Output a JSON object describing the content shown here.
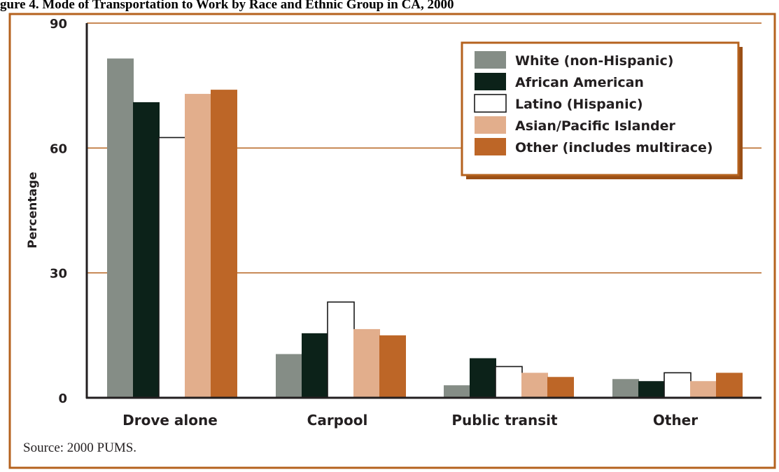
{
  "figure_title": "gure 4. Mode of Transportation to Work by Race and Ethnic Group in CA, 2000",
  "source_note": "Source: 2000 PUMS.",
  "colors": {
    "frame": "#b5621e",
    "gridline": "#b5621e",
    "axis": "#231f20"
  },
  "chart_data": {
    "type": "bar",
    "title": "",
    "xlabel": "",
    "ylabel": "Percentage",
    "ylim": [
      0,
      90
    ],
    "yticks": [
      0,
      30,
      60,
      90
    ],
    "grid": true,
    "legend_position": "top-right",
    "categories": [
      "Drove alone",
      "Carpool",
      "Public transit",
      "Other"
    ],
    "series": [
      {
        "name": "White (non-Hispanic)",
        "color": "#858d86",
        "values": [
          81.5,
          10.5,
          3.0,
          4.5
        ]
      },
      {
        "name": "African American",
        "color": "#0c2219",
        "values": [
          71.0,
          15.5,
          9.5,
          4.0
        ]
      },
      {
        "name": "Latino (Hispanic)",
        "color": "#ffffff",
        "values": [
          62.5,
          23.0,
          7.5,
          6.0
        ]
      },
      {
        "name": "Asian/Pacific Islander",
        "color": "#e2ae8c",
        "values": [
          73.0,
          16.5,
          6.0,
          4.0
        ]
      },
      {
        "name": "Other (includes multirace)",
        "color": "#bd6627",
        "values": [
          74.0,
          15.0,
          5.0,
          6.0
        ]
      }
    ]
  }
}
